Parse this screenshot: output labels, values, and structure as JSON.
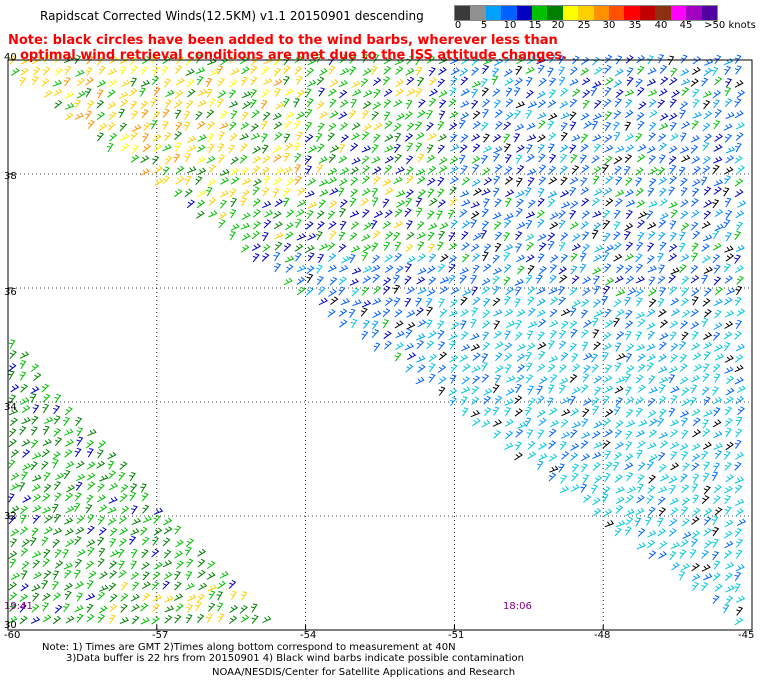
{
  "title": "Rapidscat Corrected Winds(12.5KM) v1.1 20150901 descending",
  "note_line1": "Note: black circles have been added to the wind barbs, wherever less than",
  "note_line2": "optimal wind retrieval conditions are met due to the ISS attitude changes.",
  "color_scale": {
    "colors": [
      "#3a3a3a",
      "#909090",
      "#00a0ff",
      "#0060ff",
      "#0000c0",
      "#00c000",
      "#008000",
      "#ffff00",
      "#ffd000",
      "#ff9000",
      "#ff5000",
      "#ff0000",
      "#c00000",
      "#8b3010",
      "#ff00ff",
      "#a000c0",
      "#5000a0"
    ],
    "labels": [
      "0",
      "5",
      "10",
      "15",
      "20",
      "25",
      "30",
      "35",
      "40",
      "45",
      ">50 knots"
    ]
  },
  "axes": {
    "lon_labels": [
      "-60",
      "-57",
      "-54",
      "-51",
      "-48",
      "-45"
    ],
    "lat_labels": [
      "40",
      "38",
      "36",
      "34",
      "32",
      "30"
    ]
  },
  "time_labels": {
    "left": "19:41",
    "right": "18:06"
  },
  "footer": {
    "line1": "Note: 1) Times are GMT 2)Times along bottom correspond to measurement at 40N",
    "line2": "3)Data buffer is 22 hrs from 20150901 4) Black wind barbs indicate possible contamination",
    "credit": "NOAA/NESDIS/Center for Satellite Applications and Research"
  }
}
